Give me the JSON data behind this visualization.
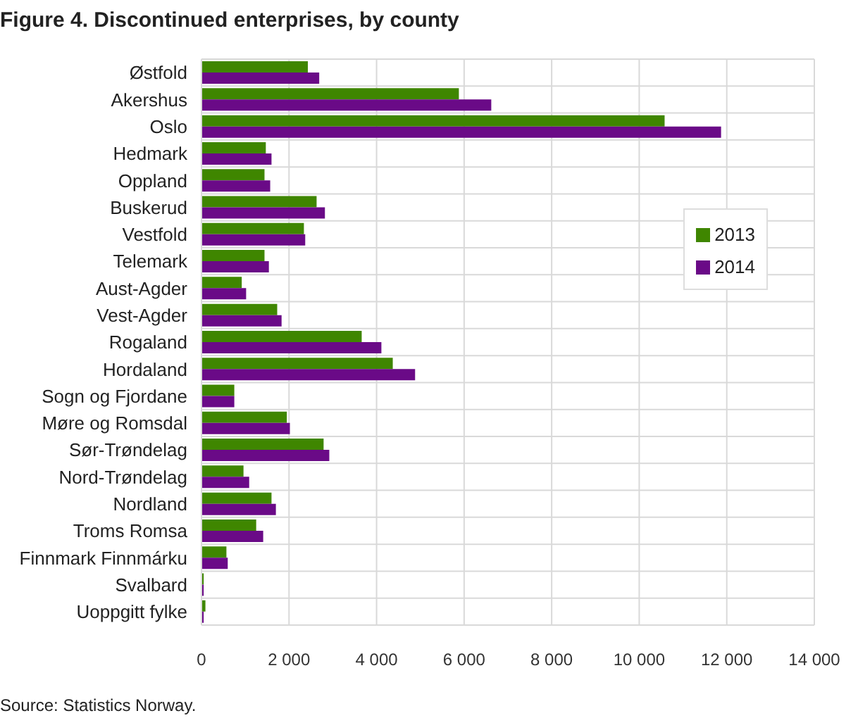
{
  "chart_data": {
    "type": "bar",
    "orientation": "horizontal",
    "title": "Figure 4. Discontinued enterprises, by county",
    "categories": [
      "Østfold",
      "Akershus",
      "Oslo",
      "Hedmark",
      "Oppland",
      "Buskerud",
      "Vestfold",
      "Telemark",
      "Aust-Agder",
      "Vest-Agder",
      "Rogaland",
      "Hordaland",
      "Sogn og Fjordane",
      "Møre og Romsdal",
      "Sør-Trøndelag",
      "Nord-Trøndelag",
      "Nordland",
      "Troms Romsa",
      "Finnmark Finnmárku",
      "Svalbard",
      "Uoppgitt fylke"
    ],
    "series": [
      {
        "name": "2013",
        "color": "#3f8600",
        "values": [
          2430,
          5880,
          10580,
          1470,
          1440,
          2630,
          2340,
          1440,
          920,
          1730,
          3660,
          4370,
          750,
          1950,
          2790,
          960,
          1600,
          1250,
          570,
          50,
          90
        ]
      },
      {
        "name": "2014",
        "color": "#6a0a87",
        "values": [
          2690,
          6620,
          11870,
          1600,
          1570,
          2820,
          2370,
          1540,
          1020,
          1830,
          4110,
          4880,
          750,
          2020,
          2920,
          1090,
          1700,
          1410,
          600,
          50,
          50
        ]
      }
    ],
    "xlim": [
      0,
      14000
    ],
    "xticks": [
      0,
      {
        "value": 2000,
        "label": "2 000"
      },
      {
        "value": 4000,
        "label": "4 000"
      },
      {
        "value": 6000,
        "label": "6 000"
      },
      {
        "value": 8000,
        "label": "8 000"
      },
      {
        "value": 10000,
        "label": "10 000"
      },
      {
        "value": 12000,
        "label": "12 000"
      },
      {
        "value": 14000,
        "label": "14 000"
      }
    ],
    "grid": true,
    "legend": "right",
    "annotations": [
      "Source: Statistics Norway."
    ]
  }
}
